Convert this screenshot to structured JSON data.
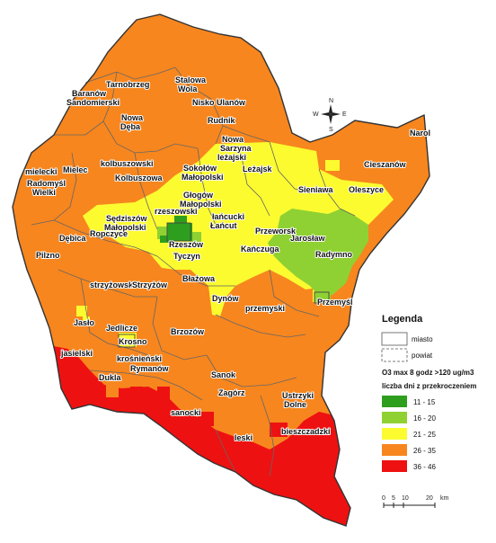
{
  "legend": {
    "title": "Legenda",
    "city_label": "miasto",
    "county_label": "powiat",
    "metric_label": "O3 max 8 godz >120 ug/m3",
    "days_label": "liczba dni z przekroczeniem",
    "classes": [
      {
        "range": "11 - 15",
        "color": "#2e9e1e"
      },
      {
        "range": "16 - 20",
        "color": "#8fd132"
      },
      {
        "range": "21 - 25",
        "color": "#fbfb30"
      },
      {
        "range": "26 - 35",
        "color": "#f7861e"
      },
      {
        "range": "36 - 46",
        "color": "#ee1111"
      }
    ]
  },
  "scale": {
    "ticks": [
      "0",
      "5",
      "10",
      "20"
    ],
    "unit": "km"
  },
  "compass": {
    "n": "N",
    "s": "S",
    "e": "E",
    "w": "W"
  },
  "places": [
    {
      "id": "tarnobrzeg",
      "text": "Tarnobrzeg"
    },
    {
      "id": "stalowa",
      "text": "Stalowa Wola"
    },
    {
      "id": "baranow",
      "text": "Baranów Sandomierski"
    },
    {
      "id": "nisko",
      "text": "Nisko Ulanów"
    },
    {
      "id": "nowadeba",
      "text": "Nowa Dęba"
    },
    {
      "id": "rudnik",
      "text": "Rudnik"
    },
    {
      "id": "narol",
      "text": "Narol"
    },
    {
      "id": "nowasarzyna",
      "text": "Nowa Sarzyna leżajski"
    },
    {
      "id": "kolbuszowski",
      "text": "kolbuszowski"
    },
    {
      "id": "mielecki",
      "text": "mielecki"
    },
    {
      "id": "mielec",
      "text": "Mielec"
    },
    {
      "id": "kolbuszowa",
      "text": "Kolbuszowa"
    },
    {
      "id": "sokolow",
      "text": "Sokołów Małopolski"
    },
    {
      "id": "lezajsk",
      "text": "Leżajsk"
    },
    {
      "id": "cieszanow",
      "text": "Cieszanów"
    },
    {
      "id": "radomysl",
      "text": "Radomyśl Wielki"
    },
    {
      "id": "sieniawa",
      "text": "Sieniawa"
    },
    {
      "id": "oleszyce",
      "text": "Oleszyce"
    },
    {
      "id": "glogow",
      "text": "Głogów Małopolski"
    },
    {
      "id": "rzeszowski",
      "text": "rzeszowski"
    },
    {
      "id": "sedziszow",
      "text": "Sędziszów Małopolski"
    },
    {
      "id": "lancucki",
      "text": "łańcucki Łańcut"
    },
    {
      "id": "ropczyce",
      "text": "Ropczyce"
    },
    {
      "id": "przeworsk",
      "text": "Przeworsk"
    },
    {
      "id": "jaroslaw",
      "text": "Jarosław"
    },
    {
      "id": "debica",
      "text": "Dębica"
    },
    {
      "id": "rzeszow",
      "text": "Rzeszów"
    },
    {
      "id": "kanczuga",
      "text": "Kańczuga"
    },
    {
      "id": "radymno",
      "text": "Radymno"
    },
    {
      "id": "tyczyn",
      "text": "Tyczyn"
    },
    {
      "id": "pilzno",
      "text": "Pilzno"
    },
    {
      "id": "blazowa",
      "text": "Błażowa"
    },
    {
      "id": "strzyzowski",
      "text": "strzyżowski"
    },
    {
      "id": "strzyzow",
      "text": "Strzyżów"
    },
    {
      "id": "dynow",
      "text": "Dynów"
    },
    {
      "id": "przemyski",
      "text": "przemyski"
    },
    {
      "id": "przemysl",
      "text": "Przemyśl"
    },
    {
      "id": "jaslo",
      "text": "Jasło"
    },
    {
      "id": "jedlicze",
      "text": "Jedlicze"
    },
    {
      "id": "krosno",
      "text": "Krosno"
    },
    {
      "id": "brzozow",
      "text": "Brzozów"
    },
    {
      "id": "jasielski",
      "text": "jasielski"
    },
    {
      "id": "krosnienski",
      "text": "krośnieński"
    },
    {
      "id": "rymanow",
      "text": "Rymanów"
    },
    {
      "id": "dukla",
      "text": "Dukla"
    },
    {
      "id": "sanok",
      "text": "Sanok"
    },
    {
      "id": "zagorz",
      "text": "Zagórz"
    },
    {
      "id": "ustrzyki",
      "text": "Ustrzyki Dolne"
    },
    {
      "id": "sanocki",
      "text": "sanocki"
    },
    {
      "id": "leski",
      "text": "leski"
    },
    {
      "id": "bieszczadzki",
      "text": "bieszczadzki"
    }
  ]
}
